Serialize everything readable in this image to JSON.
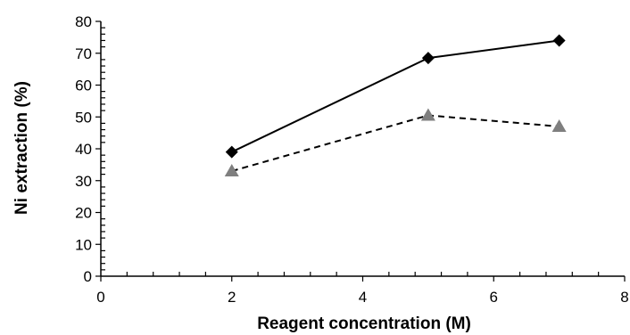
{
  "chart_data": {
    "type": "line",
    "title": "",
    "xlabel": "Reagent concentration (M)",
    "ylabel": "Ni extraction (%)",
    "xlim": [
      0,
      8
    ],
    "ylim": [
      0,
      80
    ],
    "x_ticks": [
      "0",
      "2",
      "4",
      "6",
      "8"
    ],
    "y_ticks": [
      "0",
      "10",
      "20",
      "30",
      "40",
      "50",
      "60",
      "70",
      "80"
    ],
    "grid": false,
    "legend": "none",
    "series": [
      {
        "marker": "diamond",
        "line_style": "solid",
        "color": "#000000",
        "points": [
          {
            "x": 2,
            "y": 39
          },
          {
            "x": 5,
            "y": 68.5
          },
          {
            "x": 7,
            "y": 74
          }
        ]
      },
      {
        "marker": "triangle",
        "line_style": "dashed",
        "color": "#000000",
        "marker_color": "#7f7f7f",
        "points": [
          {
            "x": 2,
            "y": 33
          },
          {
            "x": 5,
            "y": 50.5
          },
          {
            "x": 7,
            "y": 47
          }
        ]
      }
    ]
  }
}
